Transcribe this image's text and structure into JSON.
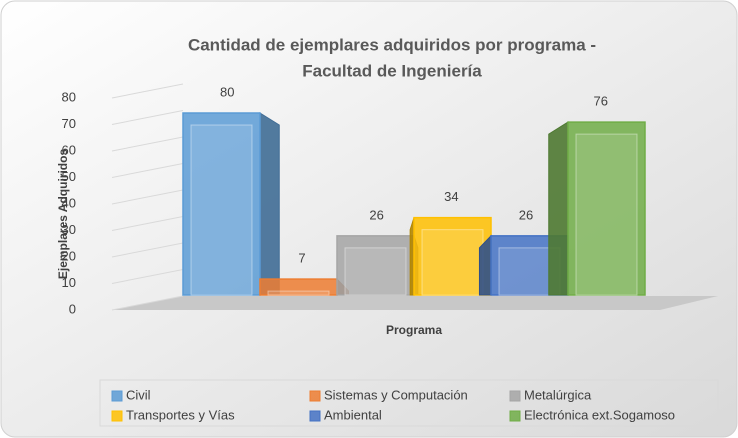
{
  "chart_data": {
    "type": "bar",
    "title": [
      "Cantidad de ejemplares adquiridos por programa -",
      "Facultad de Ingeniería"
    ],
    "ylabel": "Ejemplares Adquiridos",
    "xlabel": "Programa",
    "categories": [
      "Civil",
      "Sistemas y Computación",
      "Metalúrgica",
      "Transportes y Vías",
      "Ambiental",
      "Electrónica ext.Sogamoso"
    ],
    "values": [
      80,
      7,
      26,
      34,
      26,
      76
    ],
    "colors": [
      "#5b9bd5",
      "#ed7d31",
      "#a5a5a5",
      "#ffc000",
      "#4472c4",
      "#70ad47"
    ],
    "ylim": [
      0,
      80
    ],
    "yticks": [
      0,
      10,
      20,
      30,
      40,
      50,
      60,
      70,
      80
    ],
    "grid": true,
    "legend": "bottom"
  }
}
